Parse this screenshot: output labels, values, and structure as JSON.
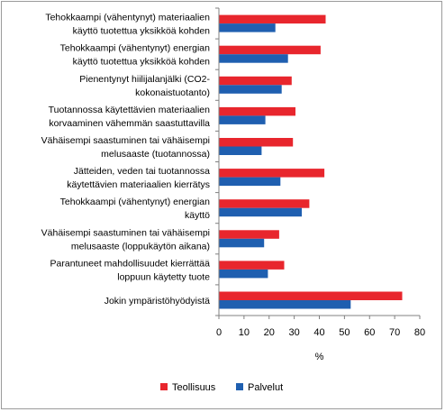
{
  "chart_data": {
    "type": "bar",
    "orientation": "horizontal",
    "categories": [
      [
        "Tehokkaampi (vähentynyt) materiaalien",
        "käyttö tuotettua yksikköä kohden"
      ],
      [
        "Tehokkaampi (vähentynyt) energian",
        "käyttö tuotettua yksikköä kohden"
      ],
      [
        "Pienentynyt hiilijalanjälki (CO2-",
        "kokonaistuotanto)"
      ],
      [
        "Tuotannossa käytettävien materiaalien",
        "korvaaminen vähemmän saastuttavilla"
      ],
      [
        "Vähäisempi saastuminen tai vähäisempi",
        "melusaaste (tuotannossa)"
      ],
      [
        "Jätteiden, veden tai tuotannossa",
        "käytettävien materiaalien kierrätys"
      ],
      [
        "Tehokkaampi (vähentynyt) energian",
        "käyttö"
      ],
      [
        "Vähäisempi saastuminen tai vähäisempi",
        "melusaaste (loppukäytön aikana)"
      ],
      [
        "Parantuneet mahdollisuudet kierrättää",
        "loppuun käytetty tuote"
      ],
      [
        "Jokin ympäristöhyödyistä"
      ]
    ],
    "series": [
      {
        "name": "Teollisuus",
        "color": "#e8262d",
        "values": [
          42.5,
          40.5,
          29,
          30.5,
          29.5,
          42,
          36,
          24,
          26,
          73
        ]
      },
      {
        "name": "Palvelut",
        "color": "#1f5fb0",
        "values": [
          22.5,
          27.5,
          25,
          18.5,
          17,
          24.5,
          33,
          18,
          19.5,
          52.5
        ]
      }
    ],
    "xlabel": "%",
    "ylabel": "",
    "xlim": [
      0,
      80
    ],
    "xticks": [
      0,
      10,
      20,
      30,
      40,
      50,
      60,
      70,
      80
    ],
    "grid": false,
    "legend_position": "bottom"
  }
}
